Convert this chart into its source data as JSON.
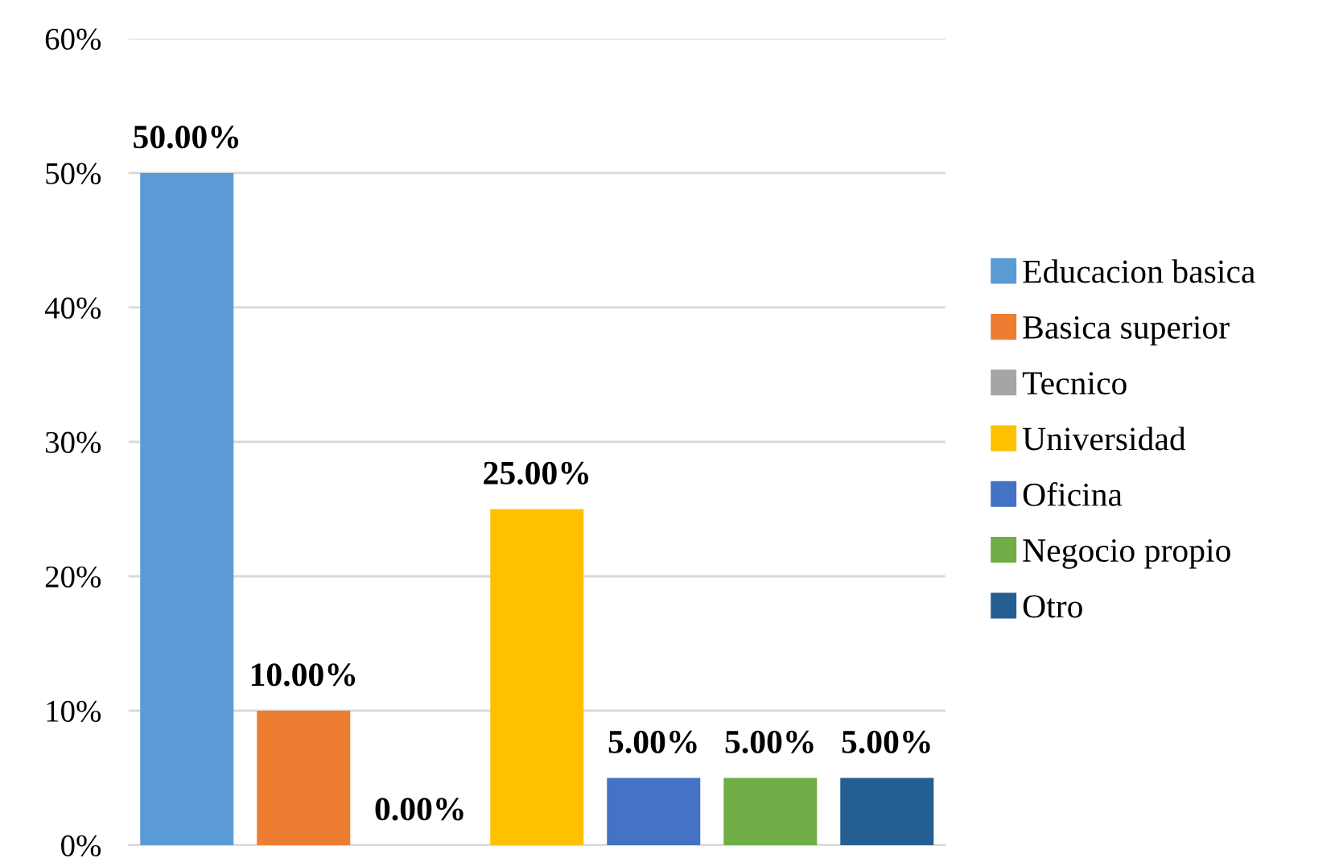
{
  "chart_data": {
    "type": "bar",
    "categories": [
      null,
      null,
      null,
      null,
      null,
      null,
      null
    ],
    "series": [
      {
        "name": "Educacion basica",
        "color": "#5b9bd5",
        "values": [
          50,
          null,
          null,
          null,
          null,
          null,
          null
        ],
        "value_labels": [
          "50.00%",
          null,
          null,
          null,
          null,
          null,
          null
        ]
      },
      {
        "name": "Basica superior",
        "color": "#ed7d31",
        "values": [
          null,
          10,
          null,
          null,
          null,
          null,
          null
        ],
        "value_labels": [
          null,
          "10.00%",
          null,
          null,
          null,
          null,
          null
        ]
      },
      {
        "name": "Tecnico",
        "color": "#a5a5a5",
        "values": [
          null,
          null,
          0,
          null,
          null,
          null,
          null
        ],
        "value_labels": [
          null,
          null,
          "0.00%",
          null,
          null,
          null,
          null
        ]
      },
      {
        "name": "Universidad",
        "color": "#ffc000",
        "values": [
          null,
          null,
          null,
          25,
          null,
          null,
          null
        ],
        "value_labels": [
          null,
          null,
          null,
          "25.00%",
          null,
          null,
          null
        ]
      },
      {
        "name": "Oficina",
        "color": "#4472c4",
        "values": [
          null,
          null,
          null,
          null,
          5,
          null,
          null
        ],
        "value_labels": [
          null,
          null,
          null,
          null,
          "5.00%",
          null,
          null
        ]
      },
      {
        "name": "Negocio propio",
        "color": "#70ad47",
        "values": [
          null,
          null,
          null,
          null,
          null,
          5,
          null
        ],
        "value_labels": [
          null,
          null,
          null,
          null,
          null,
          "5.00%",
          null
        ]
      },
      {
        "name": "Otro",
        "color": "#255e91",
        "values": [
          null,
          null,
          null,
          null,
          null,
          null,
          5
        ],
        "value_labels": [
          null,
          null,
          null,
          null,
          null,
          null,
          "5.00%"
        ]
      }
    ],
    "ylim": [
      0,
      60
    ],
    "yticks": [
      {
        "value": 0,
        "label": "0%"
      },
      {
        "value": 10,
        "label": "10%"
      },
      {
        "value": 20,
        "label": "20%"
      },
      {
        "value": 30,
        "label": "30%"
      },
      {
        "value": 40,
        "label": "40%"
      },
      {
        "value": 50,
        "label": "50%"
      },
      {
        "value": 60,
        "label": "60%"
      }
    ],
    "grid": "y",
    "legend": "right",
    "tick_labels": "y"
  }
}
